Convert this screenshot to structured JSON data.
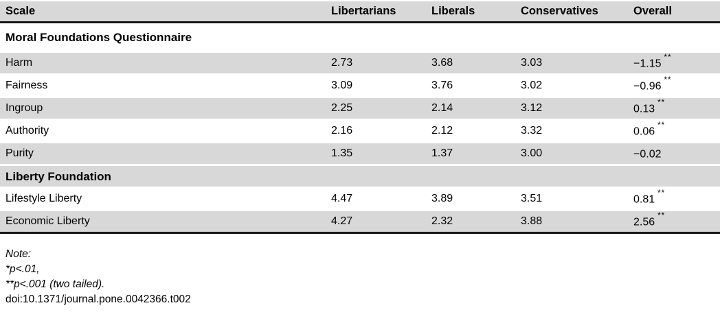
{
  "colors": {
    "row_shade": "#d8d8d8",
    "rule": "#161616",
    "text": "#000000"
  },
  "table": {
    "header": {
      "scale": "Scale",
      "libertarians": "Libertarians",
      "liberals": "Liberals",
      "conservatives": "Conservatives",
      "overall": "Overall"
    },
    "rows": [
      {
        "type": "section",
        "label": "Moral Foundations Questionnaire"
      },
      {
        "type": "data",
        "label": "Harm",
        "libertarians": "2.73",
        "liberals": "3.68",
        "conservatives": "3.03",
        "overall_value": "−1.15",
        "overall_sig": "**"
      },
      {
        "type": "data",
        "label": "Fairness",
        "libertarians": "3.09",
        "liberals": "3.76",
        "conservatives": "3.02",
        "overall_value": "−0.96",
        "overall_sig": "**"
      },
      {
        "type": "data",
        "label": "Ingroup",
        "libertarians": "2.25",
        "liberals": "2.14",
        "conservatives": "3.12",
        "overall_value": "0.13",
        "overall_sig": "**"
      },
      {
        "type": "data",
        "label": "Authority",
        "libertarians": "2.16",
        "liberals": "2.12",
        "conservatives": "3.32",
        "overall_value": "0.06",
        "overall_sig": "**"
      },
      {
        "type": "data",
        "label": "Purity",
        "libertarians": "1.35",
        "liberals": "1.37",
        "conservatives": "3.00",
        "overall_value": "−0.02",
        "overall_sig": ""
      },
      {
        "type": "section",
        "label": "Liberty Foundation"
      },
      {
        "type": "data",
        "label": "Lifestyle Liberty",
        "libertarians": "4.47",
        "liberals": "3.89",
        "conservatives": "3.51",
        "overall_value": "0.81",
        "overall_sig": "**"
      },
      {
        "type": "data",
        "label": "Economic Liberty",
        "libertarians": "4.27",
        "liberals": "2.32",
        "conservatives": "3.88",
        "overall_value": "2.56",
        "overall_sig": "**"
      }
    ]
  },
  "footnotes": {
    "note_label": "Note:",
    "sig1": "*p<.01,",
    "sig2": "**p<.001 (two tailed).",
    "doi": "doi:10.1371/journal.pone.0042366.t002"
  }
}
